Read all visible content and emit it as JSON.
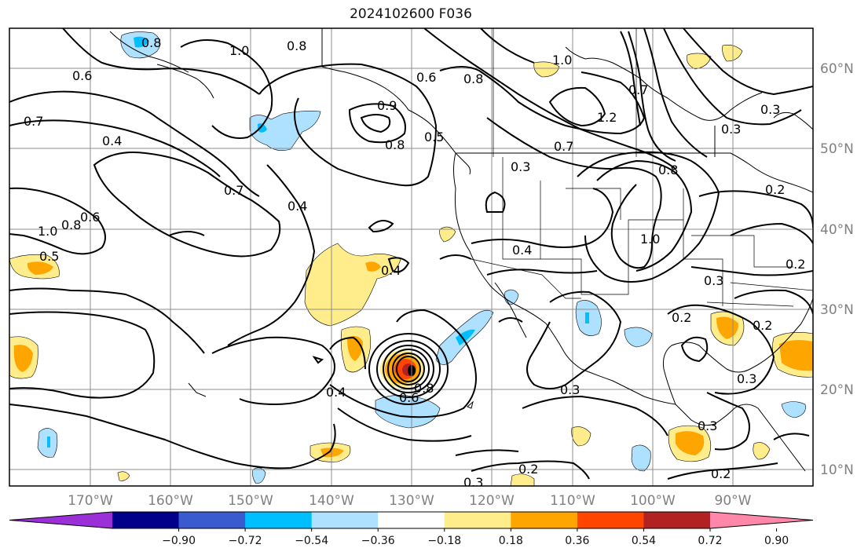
{
  "title": "2024102600 F036",
  "colors": {
    "frame": "#000000",
    "grid": "#8c8c8c",
    "axis_label": "#808080"
  },
  "lat_labels": [
    "60°N",
    "50°N",
    "40°N",
    "30°N",
    "20°N",
    "10°N"
  ],
  "lon_labels": [
    "170°W",
    "160°W",
    "150°W",
    "140°W",
    "130°W",
    "120°W",
    "110°W",
    "100°W",
    "90°W"
  ],
  "contour_labels": [
    "0.8",
    "0.8",
    "1.0",
    "0.6",
    "0.6",
    "0.8",
    "1.0",
    "0.7",
    "0.4",
    "0.9",
    "0.8",
    "0.5",
    "0.7",
    "0.3",
    "0.3",
    "1.2",
    "0.7",
    "0.8",
    "0.3",
    "0.7",
    "0.4",
    "0.6",
    "1.0",
    "0.8",
    "0.5",
    "0.4",
    "1.0",
    "0.4",
    "0.3",
    "0.2",
    "0.2",
    "0.2",
    "0.4",
    "0.8",
    "0.6",
    "0.3",
    "0.3",
    "0.3",
    "0.2",
    "0.3",
    "0.2",
    "0.2"
  ],
  "colorbar": {
    "colors": [
      "#9b30d9",
      "#00008b",
      "#3a5bd0",
      "#00bfff",
      "#aee0ff",
      "#ffffff",
      "#ffec8b",
      "#ffa500",
      "#ff4500",
      "#b22222",
      "#ff88aa"
    ],
    "tick_labels": [
      "−0.90",
      "−0.72",
      "−0.54",
      "−0.36",
      "−0.18",
      "0.18",
      "0.36",
      "0.54",
      "0.72",
      "0.90"
    ],
    "ticks": [
      -0.9,
      -0.72,
      -0.54,
      -0.36,
      -0.18,
      0.18,
      0.36,
      0.54,
      0.72,
      0.9
    ]
  }
}
